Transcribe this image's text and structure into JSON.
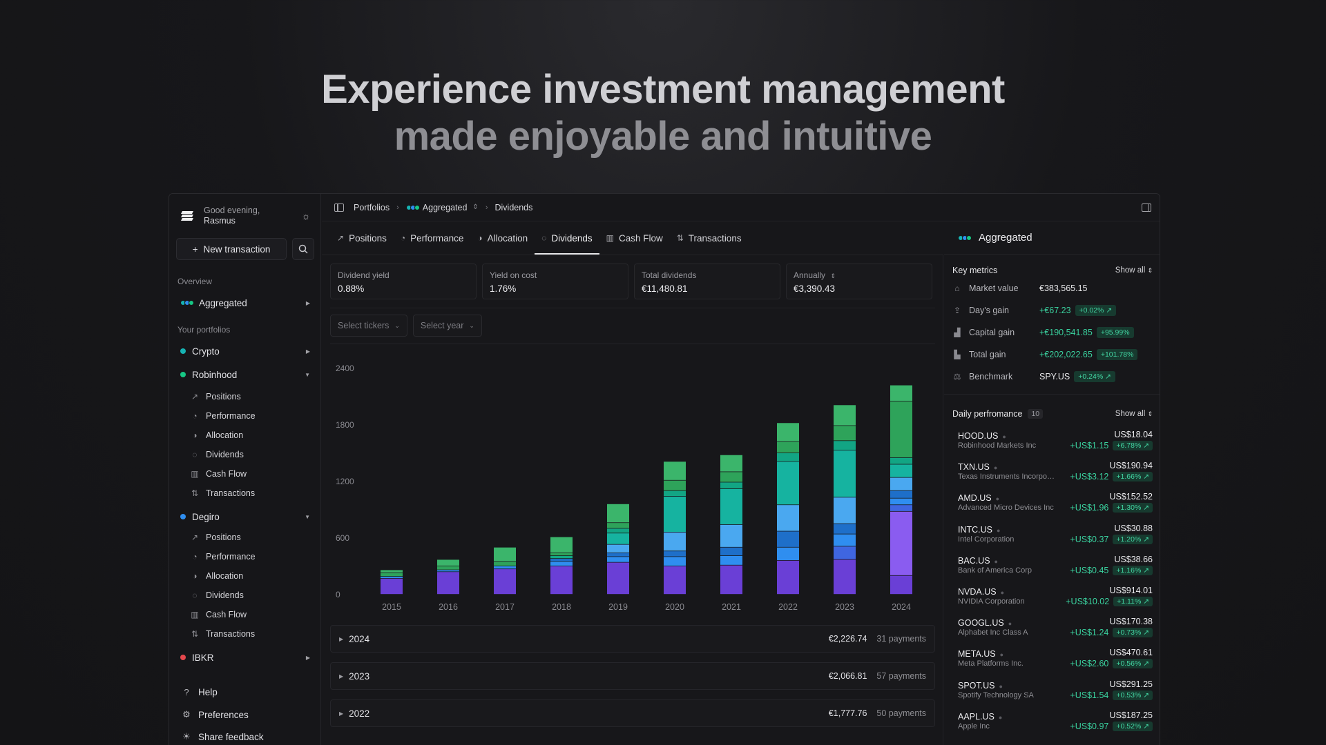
{
  "hero": {
    "line1": "Experience investment management",
    "line2": "made enjoyable and intuitive"
  },
  "sidebar": {
    "greeting": "Good evening,",
    "user": "Rasmus",
    "new_transaction": "New transaction",
    "overview_label": "Overview",
    "aggregated": "Aggregated",
    "your_portfolios_label": "Your portfolios",
    "portfolios": [
      {
        "name": "Crypto",
        "color": "#16b3b3"
      },
      {
        "name": "Robinhood",
        "color": "#16c784"
      },
      {
        "name": "Degiro",
        "color": "#2f8ef0"
      },
      {
        "name": "IBKR",
        "color": "#e5484d"
      }
    ],
    "subitems": [
      "Positions",
      "Performance",
      "Allocation",
      "Dividends",
      "Cash Flow",
      "Transactions"
    ],
    "footer": {
      "help": "Help",
      "preferences": "Preferences",
      "feedback": "Share feedback"
    }
  },
  "breadcrumb": {
    "portfolios": "Portfolios",
    "aggregated": "Aggregated",
    "page": "Dividends"
  },
  "tabs": [
    "Positions",
    "Performance",
    "Allocation",
    "Dividends",
    "Cash Flow",
    "Transactions"
  ],
  "metrics": [
    {
      "label": "Dividend yield",
      "value": "0.88%"
    },
    {
      "label": "Yield on cost",
      "value": "1.76%"
    },
    {
      "label": "Total dividends",
      "value": "€11,480.81"
    },
    {
      "label": "Annually",
      "value": "€3,390.43"
    }
  ],
  "filters": {
    "tickers": "Select tickers",
    "year": "Select year"
  },
  "chart_data": {
    "type": "bar",
    "stacked": true,
    "categories": [
      "2015",
      "2016",
      "2017",
      "2018",
      "2019",
      "2020",
      "2021",
      "2022",
      "2023",
      "2024"
    ],
    "yticks": [
      0,
      600,
      1200,
      1800,
      2400
    ],
    "ylim": [
      0,
      2400
    ],
    "palette": [
      "#6a3fd6",
      "#8a5cf0",
      "#3f66e0",
      "#2f8ef0",
      "#1e6fc9",
      "#4aa8f0",
      "#16b3a0",
      "#12a584",
      "#2ea35a",
      "#3bb56b"
    ],
    "series": [
      {
        "name": "",
        "values": [
          170,
          240,
          270,
          300,
          340,
          300,
          310,
          360,
          370,
          200
        ]
      },
      {
        "name": "",
        "values": [
          0,
          0,
          0,
          0,
          0,
          0,
          0,
          0,
          0,
          680
        ]
      },
      {
        "name": "",
        "values": [
          0,
          0,
          0,
          0,
          0,
          0,
          0,
          0,
          140,
          70
        ]
      },
      {
        "name": "",
        "values": [
          20,
          20,
          30,
          50,
          60,
          100,
          100,
          140,
          130,
          70
        ]
      },
      {
        "name": "",
        "values": [
          0,
          0,
          0,
          30,
          40,
          60,
          90,
          170,
          110,
          80
        ]
      },
      {
        "name": "",
        "values": [
          0,
          0,
          0,
          0,
          90,
          200,
          240,
          280,
          280,
          140
        ]
      },
      {
        "name": "",
        "values": [
          0,
          0,
          0,
          0,
          120,
          380,
          380,
          460,
          500,
          140
        ]
      },
      {
        "name": "",
        "values": [
          0,
          0,
          0,
          30,
          50,
          60,
          70,
          90,
          100,
          70
        ]
      },
      {
        "name": "",
        "values": [
          40,
          40,
          50,
          30,
          60,
          110,
          110,
          120,
          160,
          600
        ]
      },
      {
        "name": "",
        "values": [
          30,
          70,
          150,
          170,
          200,
          200,
          180,
          200,
          220,
          170
        ]
      }
    ]
  },
  "years": [
    {
      "year": "2024",
      "amount": "€2,226.74",
      "payments": "31 payments"
    },
    {
      "year": "2023",
      "amount": "€2,066.81",
      "payments": "57 payments"
    },
    {
      "year": "2022",
      "amount": "€1,777.76",
      "payments": "50 payments"
    }
  ],
  "right": {
    "title": "Aggregated",
    "key_metrics": "Key metrics",
    "show_all": "Show all",
    "km": [
      {
        "label": "Market value",
        "value": "€383,565.15",
        "pill": ""
      },
      {
        "label": "Day's gain",
        "value": "+€67.23",
        "pill": "+0.02% ↗"
      },
      {
        "label": "Capital gain",
        "value": "+€190,541.85",
        "pill": "+95.99%"
      },
      {
        "label": "Total gain",
        "value": "+€202,022.65",
        "pill": "+101.78%"
      },
      {
        "label": "Benchmark",
        "value": "SPY.US",
        "pill": "+0.24% ↗"
      }
    ],
    "daily_title": "Daily perfromance",
    "daily_count": "10",
    "daily": [
      {
        "ticker": "HOOD.US",
        "name": "Robinhood Markets Inc",
        "price": "US$18.04",
        "abs": "+US$1.15",
        "pct": "+6.78% ↗"
      },
      {
        "ticker": "TXN.US",
        "name": "Texas Instruments Incorporated",
        "price": "US$190.94",
        "abs": "+US$3.12",
        "pct": "+1.66% ↗"
      },
      {
        "ticker": "AMD.US",
        "name": "Advanced Micro Devices Inc",
        "price": "US$152.52",
        "abs": "+US$1.96",
        "pct": "+1.30% ↗"
      },
      {
        "ticker": "INTC.US",
        "name": "Intel Corporation",
        "price": "US$30.88",
        "abs": "+US$0.37",
        "pct": "+1.20% ↗"
      },
      {
        "ticker": "BAC.US",
        "name": "Bank of America Corp",
        "price": "US$38.66",
        "abs": "+US$0.45",
        "pct": "+1.16% ↗"
      },
      {
        "ticker": "NVDA.US",
        "name": "NVIDIA Corporation",
        "price": "US$914.01",
        "abs": "+US$10.02",
        "pct": "+1.11% ↗"
      },
      {
        "ticker": "GOOGL.US",
        "name": "Alphabet Inc Class A",
        "price": "US$170.38",
        "abs": "+US$1.24",
        "pct": "+0.73% ↗"
      },
      {
        "ticker": "META.US",
        "name": "Meta Platforms Inc.",
        "price": "US$470.61",
        "abs": "+US$2.60",
        "pct": "+0.56% ↗"
      },
      {
        "ticker": "SPOT.US",
        "name": "Spotify Technology SA",
        "price": "US$291.25",
        "abs": "+US$1.54",
        "pct": "+0.53% ↗"
      },
      {
        "ticker": "AAPL.US",
        "name": "Apple Inc",
        "price": "US$187.25",
        "abs": "+US$0.97",
        "pct": "+0.52% ↗"
      }
    ]
  }
}
